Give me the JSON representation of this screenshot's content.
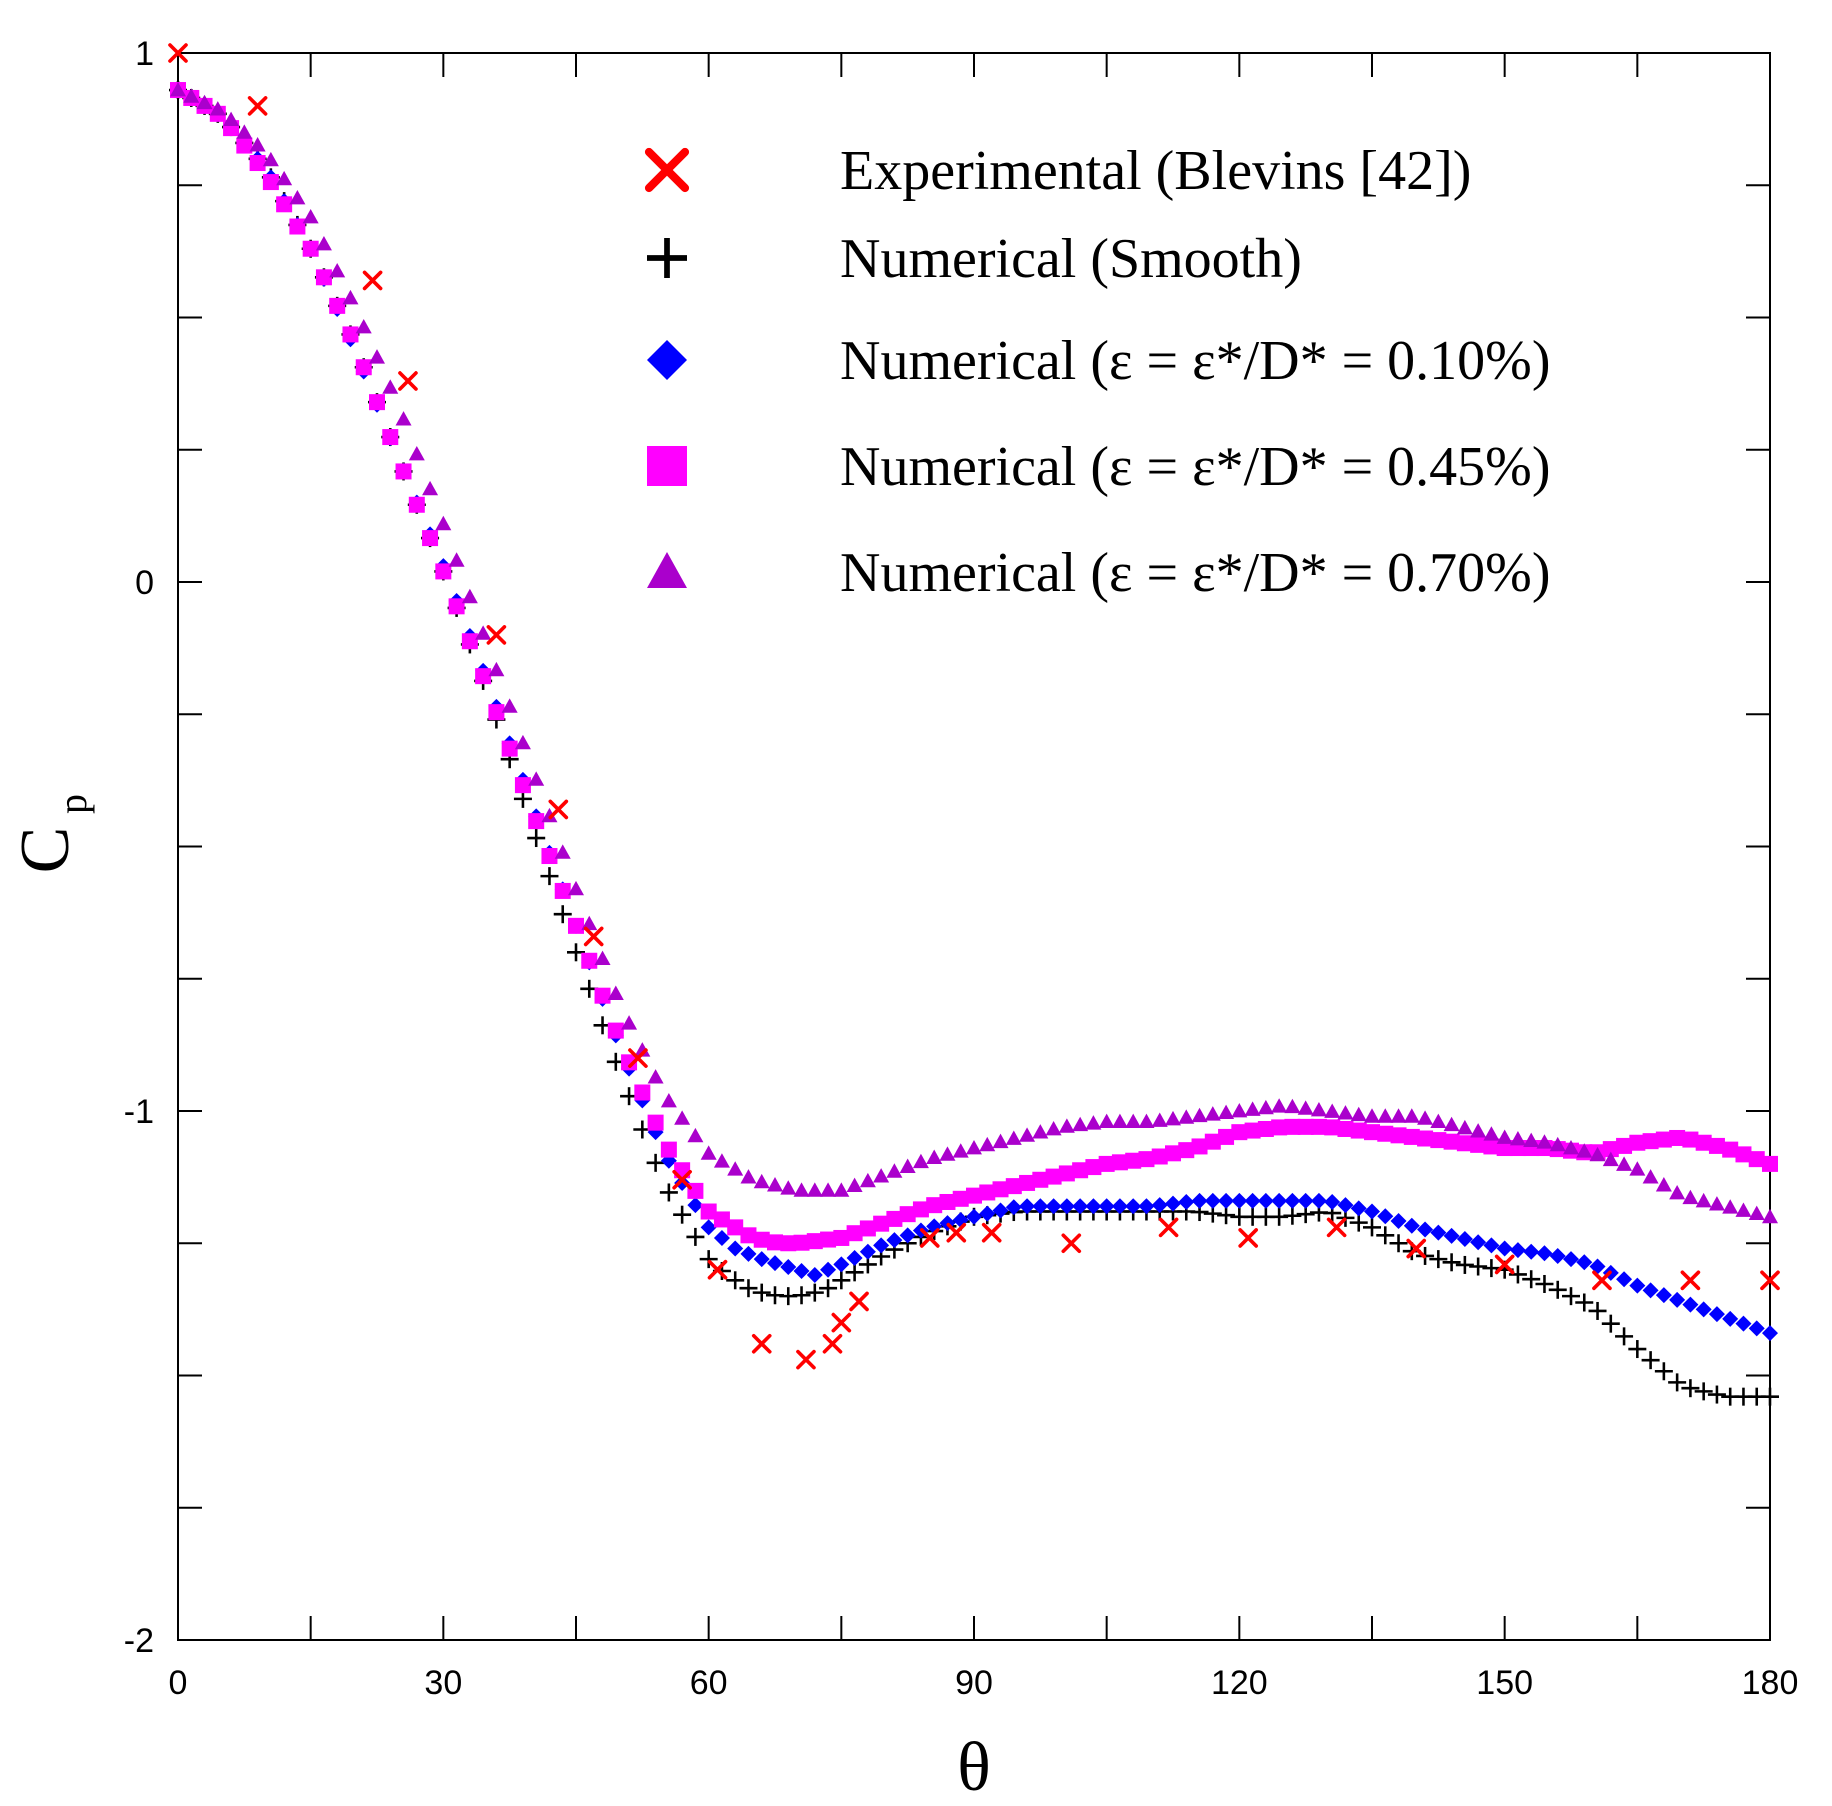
{
  "chart_data": {
    "type": "scatter",
    "title": "",
    "xlabel": "θ",
    "ylabel_main": "C",
    "ylabel_sub": "p",
    "xlim": [
      0,
      180
    ],
    "ylim": [
      -2,
      1
    ],
    "xticks": [
      0,
      30,
      60,
      90,
      120,
      150,
      180
    ],
    "xtick_labels": [
      "0",
      "30",
      "60",
      "90",
      "120",
      "150",
      "180"
    ],
    "yticks": [
      -2,
      -1,
      0,
      1
    ],
    "ytick_labels": [
      "-2",
      "-1",
      "0",
      "1"
    ],
    "grid": false,
    "legend_position": "top-right",
    "series": [
      {
        "name": "Experimental (Blevins [42])",
        "marker": "x",
        "color": "#ff0000",
        "x": [
          0,
          9,
          22,
          26,
          36,
          43,
          47,
          52,
          57,
          61,
          66,
          71,
          74,
          75,
          77,
          85,
          88,
          92,
          101,
          112,
          121,
          131,
          140,
          150,
          161,
          171,
          180
        ],
        "y": [
          1.0,
          0.9,
          0.57,
          0.38,
          -0.1,
          -0.43,
          -0.67,
          -0.9,
          -1.13,
          -1.3,
          -1.44,
          -1.47,
          -1.44,
          -1.4,
          -1.36,
          -1.24,
          -1.23,
          -1.23,
          -1.25,
          -1.22,
          -1.24,
          -1.22,
          -1.26,
          -1.29,
          -1.32,
          -1.32,
          -1.32
        ]
      },
      {
        "name": "Numerical (Smooth)",
        "marker": "+",
        "color": "#000000",
        "x": [
          0,
          5,
          10,
          15,
          20,
          25,
          30,
          35,
          40,
          45,
          50,
          55,
          60,
          62,
          65,
          68,
          70,
          73,
          76,
          80,
          85,
          90,
          95,
          100,
          105,
          110,
          115,
          120,
          125,
          130,
          135,
          140,
          145,
          150,
          155,
          160,
          165,
          170,
          175,
          180
        ],
        "y": [
          0.93,
          0.88,
          0.78,
          0.63,
          0.45,
          0.23,
          0.02,
          -0.21,
          -0.46,
          -0.7,
          -0.93,
          -1.14,
          -1.28,
          -1.31,
          -1.34,
          -1.35,
          -1.35,
          -1.34,
          -1.31,
          -1.27,
          -1.23,
          -1.2,
          -1.19,
          -1.19,
          -1.19,
          -1.19,
          -1.19,
          -1.2,
          -1.2,
          -1.19,
          -1.22,
          -1.27,
          -1.29,
          -1.3,
          -1.33,
          -1.37,
          -1.45,
          -1.52,
          -1.54,
          -1.54
        ]
      },
      {
        "name": "Numerical (ε = ε*/D* = 0.10%)",
        "marker": "diamond",
        "color": "#0000ff",
        "x": [
          0,
          5,
          10,
          15,
          20,
          25,
          30,
          35,
          40,
          45,
          50,
          55,
          60,
          63,
          66,
          70,
          72,
          75,
          80,
          85,
          90,
          95,
          100,
          105,
          110,
          115,
          120,
          125,
          130,
          135,
          140,
          145,
          150,
          155,
          160,
          165,
          170,
          175,
          180
        ],
        "y": [
          0.93,
          0.88,
          0.78,
          0.63,
          0.44,
          0.23,
          0.03,
          -0.19,
          -0.42,
          -0.65,
          -0.88,
          -1.08,
          -1.22,
          -1.26,
          -1.28,
          -1.3,
          -1.31,
          -1.29,
          -1.25,
          -1.22,
          -1.2,
          -1.18,
          -1.18,
          -1.18,
          -1.18,
          -1.17,
          -1.17,
          -1.17,
          -1.17,
          -1.19,
          -1.22,
          -1.24,
          -1.26,
          -1.27,
          -1.29,
          -1.33,
          -1.36,
          -1.39,
          -1.42
        ]
      },
      {
        "name": "Numerical (ε = ε*/D* = 0.45%)",
        "marker": "square",
        "color": "#ff00ff",
        "x": [
          0,
          5,
          10,
          15,
          20,
          25,
          30,
          35,
          40,
          45,
          50,
          55,
          60,
          65,
          68,
          70,
          75,
          80,
          85,
          90,
          95,
          100,
          105,
          110,
          115,
          120,
          125,
          130,
          135,
          140,
          145,
          150,
          155,
          160,
          165,
          170,
          175,
          180
        ],
        "y": [
          0.93,
          0.88,
          0.77,
          0.63,
          0.45,
          0.23,
          0.02,
          -0.2,
          -0.43,
          -0.65,
          -0.87,
          -1.06,
          -1.19,
          -1.24,
          -1.25,
          -1.25,
          -1.24,
          -1.21,
          -1.18,
          -1.16,
          -1.14,
          -1.12,
          -1.1,
          -1.09,
          -1.07,
          -1.04,
          -1.03,
          -1.03,
          -1.04,
          -1.05,
          -1.06,
          -1.07,
          -1.07,
          -1.08,
          -1.06,
          -1.05,
          -1.07,
          -1.1
        ]
      },
      {
        "name": "Numerical (ε = ε*/D* = 0.70%)",
        "marker": "triangle",
        "color": "#aa00cc",
        "x": [
          0,
          5,
          10,
          15,
          20,
          25,
          30,
          35,
          40,
          45,
          50,
          55,
          60,
          65,
          70,
          73,
          75,
          80,
          85,
          90,
          95,
          100,
          105,
          110,
          115,
          120,
          125,
          130,
          135,
          140,
          145,
          150,
          155,
          160,
          165,
          170,
          175,
          180
        ],
        "y": [
          0.93,
          0.89,
          0.81,
          0.69,
          0.52,
          0.33,
          0.11,
          -0.12,
          -0.35,
          -0.58,
          -0.8,
          -0.97,
          -1.08,
          -1.13,
          -1.15,
          -1.15,
          -1.15,
          -1.12,
          -1.09,
          -1.07,
          -1.05,
          -1.03,
          -1.02,
          -1.02,
          -1.01,
          -1.0,
          -0.99,
          -1.0,
          -1.01,
          -1.01,
          -1.03,
          -1.05,
          -1.06,
          -1.08,
          -1.11,
          -1.16,
          -1.18,
          -1.2
        ]
      }
    ]
  }
}
